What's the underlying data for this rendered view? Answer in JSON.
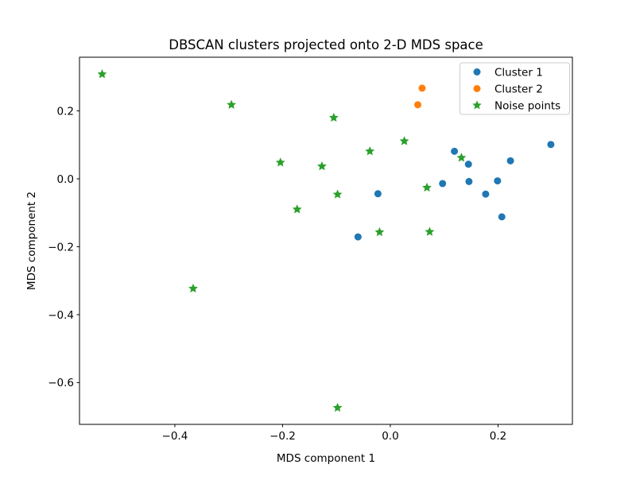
{
  "chart_data": {
    "type": "scatter",
    "title": "DBSCAN clusters projected onto 2-D MDS space",
    "xlabel": "MDS component 1",
    "ylabel": "MDS component 2",
    "xlim": [
      -0.577,
      0.338
    ],
    "ylim": [
      -0.723,
      0.358
    ],
    "xticks": {
      "values": [
        -0.4,
        -0.2,
        0.0,
        0.2
      ],
      "labels": [
        "−0.4",
        "−0.2",
        "0.0",
        "0.2"
      ]
    },
    "yticks": {
      "values": [
        0.2,
        0.0,
        -0.2,
        -0.4,
        -0.6
      ],
      "labels": [
        "0.2",
        "0.0",
        "−0.2",
        "−0.4",
        "−0.6"
      ]
    },
    "grid": false,
    "legend_position": "upper right",
    "series": [
      {
        "name": "Cluster 1",
        "marker": "circle",
        "color": "#1f77b4",
        "points": [
          [
            0.298,
            0.101
          ],
          [
            0.119,
            0.081
          ],
          [
            0.145,
            0.043
          ],
          [
            0.223,
            0.053
          ],
          [
            0.097,
            -0.014
          ],
          [
            0.146,
            -0.008
          ],
          [
            0.199,
            -0.006
          ],
          [
            -0.023,
            -0.044
          ],
          [
            0.177,
            -0.045
          ],
          [
            0.207,
            -0.112
          ],
          [
            -0.06,
            -0.171
          ]
        ]
      },
      {
        "name": "Cluster 2",
        "marker": "circle",
        "color": "#ff7f0e",
        "points": [
          [
            0.059,
            0.267
          ],
          [
            0.051,
            0.218
          ]
        ]
      },
      {
        "name": "Noise points",
        "marker": "star",
        "color": "#2ca02c",
        "points": [
          [
            -0.535,
            0.308
          ],
          [
            -0.295,
            0.218
          ],
          [
            -0.105,
            0.18
          ],
          [
            0.026,
            0.111
          ],
          [
            -0.038,
            0.081
          ],
          [
            0.132,
            0.062
          ],
          [
            -0.204,
            0.048
          ],
          [
            -0.127,
            0.037
          ],
          [
            0.068,
            -0.026
          ],
          [
            -0.098,
            -0.046
          ],
          [
            -0.173,
            -0.09
          ],
          [
            -0.02,
            -0.157
          ],
          [
            0.073,
            -0.156
          ],
          [
            -0.366,
            -0.323
          ],
          [
            -0.098,
            -0.674
          ]
        ]
      }
    ],
    "colors": {
      "spine": "#000000",
      "background": "#ffffff",
      "legend_border": "#cccccc",
      "legend_background": "#ffffff"
    }
  }
}
